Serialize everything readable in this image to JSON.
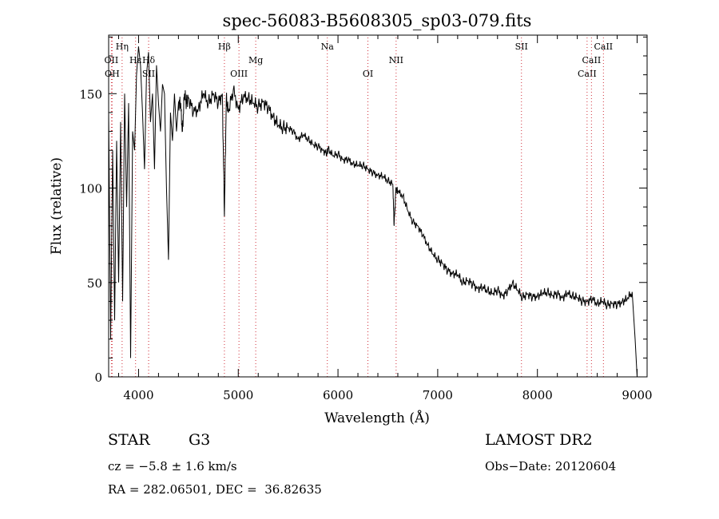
{
  "chart_data": {
    "type": "line",
    "title": "spec-56083-B5608305_sp03-079.fits",
    "xlabel": "Wavelength (Å)",
    "ylabel": "Flux (relative)",
    "xlim": [
      3700,
      9100
    ],
    "ylim": [
      0,
      181
    ],
    "xticks": [
      4000,
      5000,
      6000,
      7000,
      8000,
      9000
    ],
    "yticks": [
      0,
      50,
      100,
      150
    ],
    "x_minor_step": 200,
    "y_minor_step": 10,
    "line_color": "#000000",
    "marker_color": "#d0303a",
    "series": [
      {
        "x": [
          3700,
          3720,
          3740,
          3760,
          3780,
          3800,
          3820,
          3840,
          3860,
          3880,
          3900,
          3920,
          3940,
          3960,
          3980,
          4000,
          4020,
          4040,
          4060,
          4080,
          4100,
          4120,
          4140,
          4160,
          4180,
          4200,
          4220,
          4240,
          4260,
          4280,
          4300,
          4320,
          4340,
          4360,
          4380,
          4400,
          4420,
          4440,
          4460,
          4480,
          4500,
          4550,
          4600,
          4650,
          4700,
          4750,
          4800,
          4840,
          4861,
          4880,
          4900,
          4950,
          5000,
          5050,
          5100,
          5150,
          5200,
          5250,
          5300,
          5350,
          5400,
          5450,
          5500,
          5550,
          5600,
          5650,
          5700,
          5750,
          5800,
          5850,
          5890,
          5900,
          5950,
          6000,
          6050,
          6100,
          6150,
          6200,
          6250,
          6300,
          6350,
          6400,
          6450,
          6500,
          6550,
          6563,
          6580,
          6600,
          6650,
          6700,
          6750,
          6800,
          6850,
          6900,
          6950,
          7000,
          7050,
          7100,
          7150,
          7200,
          7250,
          7300,
          7350,
          7400,
          7450,
          7500,
          7550,
          7600,
          7650,
          7700,
          7750,
          7800,
          7850,
          7900,
          7950,
          8000,
          8050,
          8100,
          8150,
          8200,
          8250,
          8300,
          8350,
          8400,
          8450,
          8500,
          8550,
          8600,
          8650,
          8700,
          8750,
          8800,
          8850,
          8900,
          8950,
          8980,
          9000
        ],
        "y": [
          140,
          20,
          120,
          30,
          125,
          50,
          135,
          40,
          150,
          90,
          145,
          10,
          130,
          120,
          160,
          175,
          165,
          140,
          110,
          160,
          172,
          135,
          150,
          110,
          165,
          145,
          130,
          155,
          150,
          100,
          62,
          140,
          125,
          150,
          130,
          145,
          145,
          130,
          150,
          145,
          148,
          140,
          142,
          150,
          145,
          150,
          145,
          150,
          85,
          148,
          140,
          152,
          142,
          148,
          148,
          145,
          143,
          146,
          142,
          138,
          133,
          132,
          132,
          130,
          126,
          128,
          126,
          123,
          122,
          120,
          118,
          121,
          117,
          118,
          115,
          115,
          113,
          112,
          112,
          110,
          108,
          107,
          106,
          104,
          102,
          80,
          100,
          98,
          96,
          88,
          82,
          80,
          75,
          70,
          65,
          62,
          60,
          56,
          55,
          54,
          50,
          51,
          49,
          47,
          47,
          46,
          44,
          46,
          43,
          45,
          50,
          46,
          42,
          44,
          42,
          43,
          44,
          45,
          43,
          44,
          42,
          44,
          43,
          42,
          40,
          40,
          41,
          39,
          40,
          38,
          39,
          38,
          40,
          41,
          45,
          20,
          0
        ]
      }
    ],
    "line_markers": [
      {
        "x": 3727,
        "label": "OII",
        "row": 2
      },
      {
        "x": 3735,
        "label": "OH",
        "row": 3
      },
      {
        "x": 3835,
        "label": "Hη",
        "row": 1
      },
      {
        "x": 3970,
        "label": "Hε",
        "row": 2
      },
      {
        "x": 4101,
        "label": "Hδ",
        "row": 2
      },
      {
        "x": 4101,
        "label": "SII",
        "row": 3
      },
      {
        "x": 4861,
        "label": "Hβ",
        "row": 1
      },
      {
        "x": 5007,
        "label": "OIII",
        "row": 3
      },
      {
        "x": 5175,
        "label": "Mg",
        "row": 2
      },
      {
        "x": 5893,
        "label": "Na",
        "row": 1
      },
      {
        "x": 6300,
        "label": "OI",
        "row": 3
      },
      {
        "x": 6583,
        "label": "NII",
        "row": 2
      },
      {
        "x": 7840,
        "label": "SII",
        "row": 1
      },
      {
        "x": 8498,
        "label": "CaII",
        "row": 3
      },
      {
        "x": 8542,
        "label": "CaII",
        "row": 2
      },
      {
        "x": 8662,
        "label": "CaII",
        "row": 1
      }
    ]
  },
  "info": {
    "object_type": "STAR",
    "subclass": "G3",
    "survey": "LAMOST DR2",
    "redshift": "cz = −5.8 ± 1.6 km/s",
    "obs_date": "Obs−Date: 20120604",
    "coords": "RA = 282.06501, DEC =  36.82635"
  }
}
